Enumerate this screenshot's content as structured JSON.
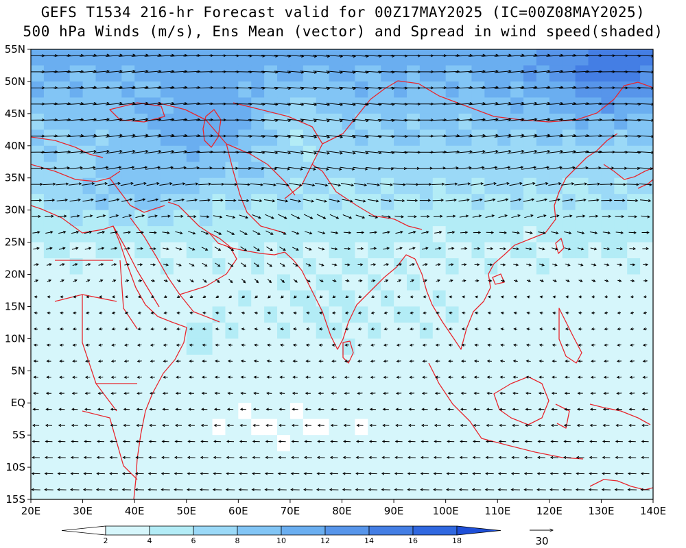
{
  "title": {
    "line1": "GEFS T1534 216-hr Forecast valid for 00Z17MAY2025 (IC=00Z08MAY2025)",
    "line2": "500 hPa Winds (m/s), Ens Mean (vector) and Spread in wind speed(shaded)"
  },
  "map": {
    "lon_range": [
      20,
      140
    ],
    "lat_range": [
      -15,
      55
    ],
    "x_ticks": [
      "20E",
      "30E",
      "40E",
      "50E",
      "60E",
      "70E",
      "80E",
      "90E",
      "100E",
      "110E",
      "120E",
      "130E",
      "140E"
    ],
    "y_ticks": [
      "55N",
      "50N",
      "45N",
      "40N",
      "35N",
      "30N",
      "25N",
      "20N",
      "15N",
      "10N",
      "5N",
      "EQ",
      "5S",
      "10S",
      "15S"
    ],
    "coastline_color": "#e8262d"
  },
  "colorbar": {
    "labels": [
      "2",
      "4",
      "6",
      "8",
      "10",
      "12",
      "14",
      "16",
      "18"
    ],
    "colors": [
      "#ffffff",
      "#d6f6fb",
      "#b3ecf6",
      "#9bd9f7",
      "#82c5f5",
      "#6aaef0",
      "#5795ea",
      "#447ee4",
      "#3068e0",
      "#1e4fd8"
    ]
  },
  "reference_vector": {
    "label": "30",
    "units": "m/s"
  }
}
